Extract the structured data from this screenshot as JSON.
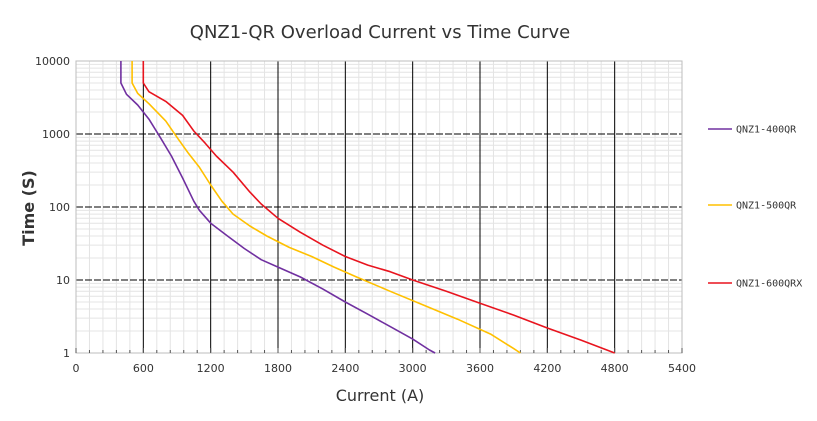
{
  "chart_data": {
    "type": "line",
    "title": "QNZ1-QR Overload Current  vs  Time Curve",
    "xlabel": "Current (A)",
    "ylabel": "Time (S)",
    "xlim": [
      0,
      5400
    ],
    "ylim": [
      1,
      10000
    ],
    "yscale": "log",
    "x_ticks": [
      "0",
      "600",
      "1200",
      "1800",
      "2400",
      "3000",
      "3600",
      "4200",
      "4800",
      "5400"
    ],
    "y_ticks": [
      "1",
      "10",
      "100",
      "1000",
      "10000"
    ],
    "grid": true,
    "legend_position": "right",
    "series": [
      {
        "name": "QNZ1-400QR",
        "color": "#7030a0",
        "points": [
          [
            400,
            10000
          ],
          [
            400,
            5000
          ],
          [
            450,
            3500
          ],
          [
            550,
            2500
          ],
          [
            650,
            1600
          ],
          [
            750,
            900
          ],
          [
            850,
            500
          ],
          [
            950,
            250
          ],
          [
            1050,
            120
          ],
          [
            1100,
            90
          ],
          [
            1200,
            60
          ],
          [
            1350,
            40
          ],
          [
            1500,
            27
          ],
          [
            1650,
            19
          ],
          [
            1800,
            15
          ],
          [
            2000,
            11
          ],
          [
            2200,
            7.5
          ],
          [
            2400,
            5
          ],
          [
            2600,
            3.4
          ],
          [
            2800,
            2.3
          ],
          [
            3000,
            1.55
          ],
          [
            3150,
            1.1
          ],
          [
            3200,
            1
          ]
        ]
      },
      {
        "name": "QNZ1-500QR",
        "color": "#ffc000",
        "points": [
          [
            500,
            10000
          ],
          [
            500,
            5000
          ],
          [
            550,
            3600
          ],
          [
            650,
            2600
          ],
          [
            800,
            1500
          ],
          [
            900,
            900
          ],
          [
            1000,
            550
          ],
          [
            1100,
            350
          ],
          [
            1200,
            200
          ],
          [
            1300,
            120
          ],
          [
            1400,
            80
          ],
          [
            1550,
            55
          ],
          [
            1700,
            40
          ],
          [
            1900,
            28
          ],
          [
            2100,
            21
          ],
          [
            2300,
            15
          ],
          [
            2500,
            11
          ],
          [
            2800,
            7
          ],
          [
            3100,
            4.5
          ],
          [
            3400,
            2.9
          ],
          [
            3700,
            1.8
          ],
          [
            3900,
            1.15
          ],
          [
            3960,
            1
          ]
        ]
      },
      {
        "name": "QNZ1-600QRX",
        "color": "#e8141e",
        "points": [
          [
            600,
            10000
          ],
          [
            600,
            5000
          ],
          [
            650,
            3800
          ],
          [
            800,
            2800
          ],
          [
            950,
            1800
          ],
          [
            1050,
            1100
          ],
          [
            1150,
            750
          ],
          [
            1250,
            500
          ],
          [
            1400,
            300
          ],
          [
            1550,
            160
          ],
          [
            1650,
            110
          ],
          [
            1800,
            70
          ],
          [
            2000,
            45
          ],
          [
            2200,
            30
          ],
          [
            2400,
            21
          ],
          [
            2600,
            16
          ],
          [
            2800,
            13
          ],
          [
            3000,
            10
          ],
          [
            3300,
            7
          ],
          [
            3600,
            4.8
          ],
          [
            3900,
            3.3
          ],
          [
            4200,
            2.2
          ],
          [
            4500,
            1.5
          ],
          [
            4800,
            1
          ]
        ]
      }
    ]
  }
}
